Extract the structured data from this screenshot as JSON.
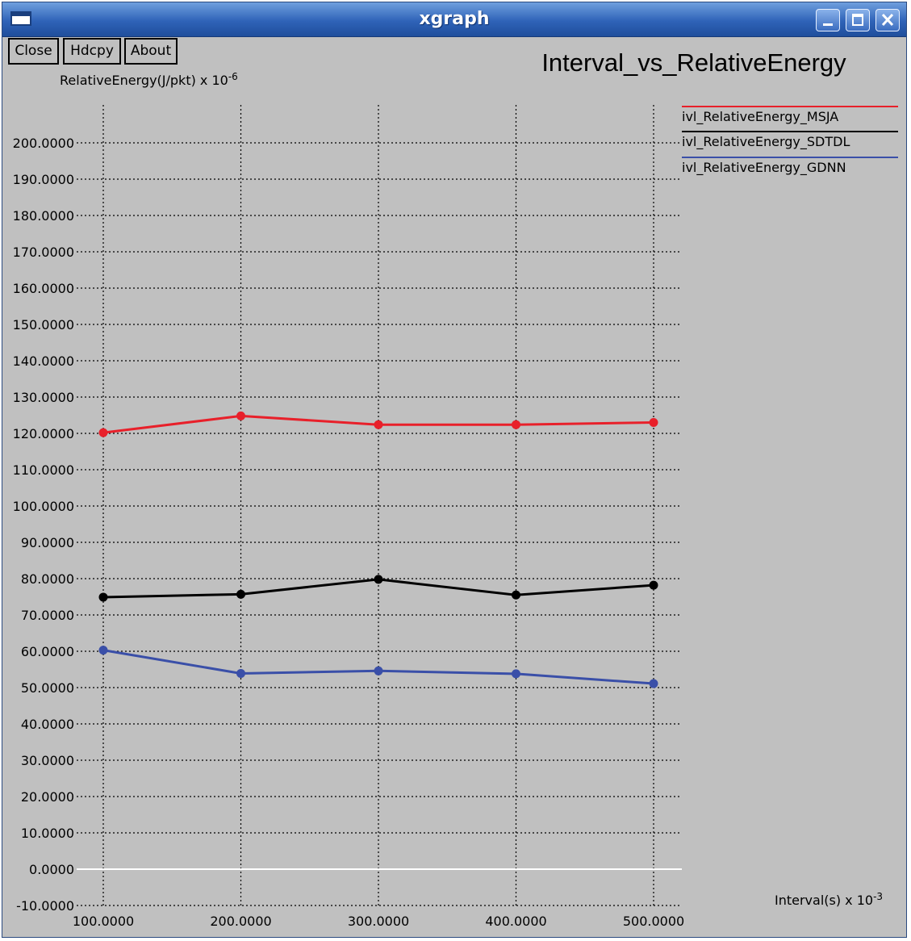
{
  "window": {
    "title": "xgraph"
  },
  "toolbar": {
    "close_label": "Close",
    "hdcpy_label": "Hdcpy",
    "about_label": "About"
  },
  "chart_data": {
    "type": "line",
    "title": "Interval_vs_RelativeEnergy",
    "ylabel": "RelativeEnergy(J/pkt) x 10",
    "ylabel_exp": "-6",
    "xlabel": "Interval(s) x 10",
    "xlabel_exp": "-3",
    "xlim": [
      100,
      500
    ],
    "ylim": [
      -10,
      200
    ],
    "x_ticks": [
      "100.0000",
      "200.0000",
      "300.0000",
      "400.0000",
      "500.0000"
    ],
    "y_ticks": [
      "200.0000",
      "190.0000",
      "180.0000",
      "170.0000",
      "160.0000",
      "150.0000",
      "140.0000",
      "130.0000",
      "120.0000",
      "110.0000",
      "100.0000",
      "90.0000",
      "80.0000",
      "70.0000",
      "60.0000",
      "50.0000",
      "40.0000",
      "30.0000",
      "20.0000",
      "10.0000",
      "0.0000",
      "-10.0000"
    ],
    "grid": true,
    "legend_position": "top-right",
    "x": [
      100,
      200,
      300,
      400,
      500
    ],
    "series": [
      {
        "name": "ivl_RelativeEnergy_MSJA",
        "color": "#e8202a",
        "values": [
          120.2,
          124.8,
          122.4,
          122.4,
          123.0
        ]
      },
      {
        "name": "ivl_RelativeEnergy_SDTDL",
        "color": "#000000",
        "values": [
          74.9,
          75.7,
          79.8,
          75.5,
          78.2
        ]
      },
      {
        "name": "ivl_RelativeEnergy_GDNN",
        "color": "#3a4fa8",
        "values": [
          60.3,
          53.9,
          54.6,
          53.8,
          51.1
        ]
      }
    ]
  }
}
